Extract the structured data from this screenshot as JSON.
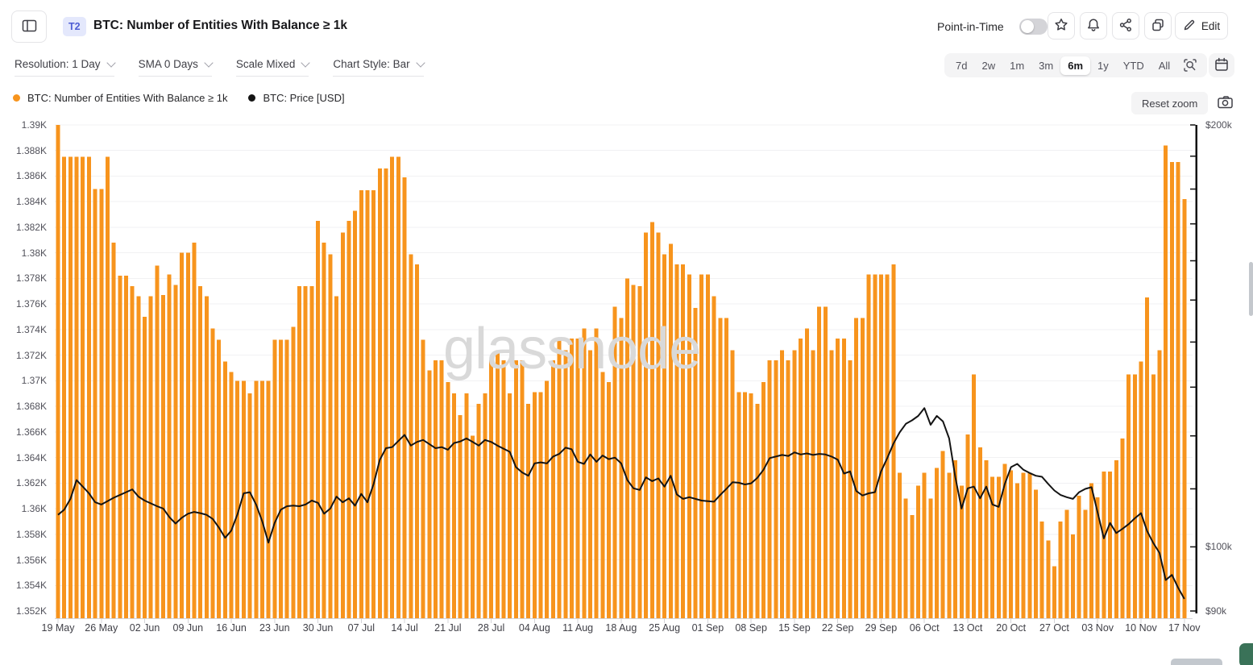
{
  "header": {
    "badge": "T2",
    "title": "BTC: Number of Entities With Balance ≥ 1k",
    "point_in_time": {
      "label": "Point-in-Time",
      "enabled": false
    },
    "edit_label": "Edit"
  },
  "toolbar": {
    "filters": [
      "Resolution: 1 Day",
      "SMA 0 Days",
      "Scale Mixed",
      "Chart Style: Bar"
    ],
    "ranges": [
      "7d",
      "2w",
      "1m",
      "3m",
      "6m",
      "1y",
      "YTD",
      "All"
    ],
    "active_range_index": 4
  },
  "legend": {
    "items": [
      {
        "label": "BTC: Number of Entities With Balance ≥ 1k",
        "color": "#F7941D"
      },
      {
        "label": "BTC: Price [USD]",
        "color": "#141414"
      }
    ],
    "reset_zoom_label": "Reset zoom"
  },
  "colors": {
    "bars": "#F7941D",
    "price_line": "#141414",
    "grid": "#f1f1f3",
    "axis_text": "#52525b",
    "price_axis": "#111111"
  },
  "chart_data": {
    "type": "bar",
    "title": "BTC: Number of Entities With Balance ≥ 1k",
    "watermark": "glassnode",
    "frequency": "daily",
    "x_start": "19 May",
    "x_end": "17 Nov",
    "x_tick_labels": [
      "19 May",
      "26 May",
      "02 Jun",
      "09 Jun",
      "16 Jun",
      "23 Jun",
      "30 Jun",
      "07 Jul",
      "14 Jul",
      "21 Jul",
      "28 Jul",
      "04 Aug",
      "11 Aug",
      "18 Aug",
      "25 Aug",
      "01 Sep",
      "08 Sep",
      "15 Sep",
      "22 Sep",
      "29 Sep",
      "06 Oct",
      "13 Oct",
      "20 Oct",
      "27 Oct",
      "03 Nov",
      "10 Nov",
      "17 Nov"
    ],
    "left_axis": {
      "title": "Entities (thousands)",
      "max": 1.39,
      "min": 1.352,
      "tick_step": 0.002,
      "tick_labels": [
        "1.39K",
        "1.388K",
        "1.386K",
        "1.384K",
        "1.382K",
        "1.38K",
        "1.378K",
        "1.376K",
        "1.374K",
        "1.372K",
        "1.37K",
        "1.368K",
        "1.366K",
        "1.364K",
        "1.362K",
        "1.36K",
        "1.358K",
        "1.356K",
        "1.354K",
        "1.352K"
      ]
    },
    "right_axis": {
      "title": "BTC Price [USD]",
      "scale": "log",
      "max": 200,
      "min": 90,
      "labels": [
        {
          "text": "$200k",
          "value": 200
        },
        {
          "text": "$100k",
          "value": 100
        },
        {
          "text": "$90k",
          "value": 90
        }
      ],
      "minor_ticks": [
        90,
        100,
        110,
        120,
        130,
        140,
        150,
        160,
        170,
        180,
        190,
        200
      ]
    },
    "series": [
      {
        "name": "BTC: Number of Entities With Balance ≥ 1k",
        "type": "bar",
        "unit": "K entities",
        "values": [
          1.39,
          1.3875,
          1.3875,
          1.3875,
          1.3875,
          1.3875,
          1.385,
          1.385,
          1.3875,
          1.3808,
          1.3782,
          1.3782,
          1.3774,
          1.3766,
          1.375,
          1.3766,
          1.379,
          1.3767,
          1.3783,
          1.3775,
          1.38,
          1.38,
          1.3808,
          1.3774,
          1.3766,
          1.3741,
          1.3732,
          1.3715,
          1.3707,
          1.37,
          1.37,
          1.369,
          1.37,
          1.37,
          1.37,
          1.3732,
          1.3732,
          1.3732,
          1.3742,
          1.3774,
          1.3774,
          1.3774,
          1.3825,
          1.3808,
          1.3799,
          1.3766,
          1.3816,
          1.3825,
          1.3833,
          1.3849,
          1.3849,
          1.3849,
          1.3866,
          1.3866,
          1.3875,
          1.3875,
          1.3859,
          1.3799,
          1.3791,
          1.3732,
          1.3708,
          1.3716,
          1.3716,
          1.3699,
          1.369,
          1.3673,
          1.369,
          1.3657,
          1.3682,
          1.369,
          1.3716,
          1.3724,
          1.3716,
          1.369,
          1.3716,
          1.3716,
          1.3682,
          1.3691,
          1.3691,
          1.37,
          1.3716,
          1.3733,
          1.3724,
          1.3733,
          1.3733,
          1.3741,
          1.3724,
          1.3741,
          1.3707,
          1.3699,
          1.3758,
          1.3749,
          1.378,
          1.3775,
          1.3774,
          1.3816,
          1.3824,
          1.3816,
          1.3799,
          1.3807,
          1.3791,
          1.3791,
          1.3783,
          1.3757,
          1.3783,
          1.3783,
          1.3766,
          1.3749,
          1.3749,
          1.3724,
          1.3691,
          1.3691,
          1.369,
          1.3682,
          1.3699,
          1.3716,
          1.3716,
          1.3724,
          1.3716,
          1.3724,
          1.3733,
          1.3741,
          1.3724,
          1.3758,
          1.3758,
          1.3724,
          1.3733,
          1.3733,
          1.3716,
          1.3749,
          1.3749,
          1.3783,
          1.3783,
          1.3783,
          1.3783,
          1.3791,
          1.3628,
          1.3608,
          1.3595,
          1.3618,
          1.3628,
          1.3608,
          1.3632,
          1.3645,
          1.3628,
          1.3638,
          1.3618,
          1.3658,
          1.3705,
          1.3648,
          1.3638,
          1.3625,
          1.3625,
          1.3635,
          1.363,
          1.362,
          1.3628,
          1.3628,
          1.3615,
          1.359,
          1.3575,
          1.3555,
          1.359,
          1.3599,
          1.358,
          1.361,
          1.3599,
          1.362,
          1.3609,
          1.3629,
          1.3629,
          1.3638,
          1.3655,
          1.3705,
          1.3705,
          1.3715,
          1.3765,
          1.3705,
          1.3724,
          1.3884,
          1.3871,
          1.3871,
          1.3842
        ]
      },
      {
        "name": "BTC: Price [USD]",
        "type": "line",
        "unit": "$k",
        "values": [
          105.4,
          106.3,
          108.2,
          111.6,
          110.4,
          109.2,
          107.6,
          107.2,
          107.8,
          108.4,
          108.9,
          109.4,
          109.9,
          108.6,
          107.9,
          107.4,
          106.9,
          106.5,
          105.0,
          103.9,
          104.9,
          105.6,
          105.9,
          105.7,
          105.4,
          104.7,
          103.2,
          101.5,
          102.7,
          105.5,
          109.2,
          109.4,
          107.2,
          104.3,
          100.7,
          104.0,
          106.3,
          106.9,
          107.0,
          106.9,
          107.2,
          107.9,
          107.5,
          105.6,
          106.5,
          108.6,
          107.6,
          108.3,
          107.0,
          109.1,
          107.6,
          110.9,
          115.4,
          117.6,
          117.8,
          119.0,
          120.2,
          118.1,
          118.8,
          119.2,
          118.4,
          117.6,
          117.8,
          117.3,
          118.6,
          118.9,
          119.5,
          118.8,
          118.1,
          119.2,
          118.8,
          118.1,
          117.5,
          116.9,
          114.0,
          113.0,
          112.4,
          114.7,
          114.9,
          114.7,
          116.0,
          116.5,
          117.7,
          117.4,
          115.0,
          114.6,
          116.4,
          115.0,
          116.2,
          115.5,
          115.8,
          114.7,
          111.6,
          110.1,
          109.8,
          112.1,
          111.4,
          111.9,
          110.4,
          112.4,
          109.0,
          108.2,
          108.5,
          108.2,
          107.9,
          107.8,
          107.7,
          108.9,
          110.0,
          111.2,
          111.1,
          110.8,
          111.0,
          112.0,
          113.5,
          115.7,
          116.0,
          116.3,
          116.1,
          116.8,
          116.4,
          116.6,
          116.3,
          116.5,
          116.4,
          116.0,
          115.4,
          112.8,
          113.2,
          109.6,
          108.8,
          109.2,
          109.4,
          113.2,
          115.7,
          118.5,
          120.7,
          122.4,
          123.1,
          124.0,
          125.6,
          122.2,
          124.0,
          122.9,
          119.5,
          112.1,
          106.5,
          110.1,
          110.4,
          108.3,
          110.4,
          107.2,
          106.8,
          110.9,
          114.0,
          114.6,
          113.5,
          112.9,
          112.4,
          112.2,
          110.9,
          109.7,
          108.9,
          108.5,
          108.2,
          109.4,
          110.0,
          110.3,
          105.8,
          101.4,
          104.0,
          102.3,
          103.0,
          103.8,
          104.8,
          105.7,
          102.6,
          100.6,
          99.0,
          94.7,
          95.5,
          93.5,
          91.8
        ]
      }
    ]
  }
}
